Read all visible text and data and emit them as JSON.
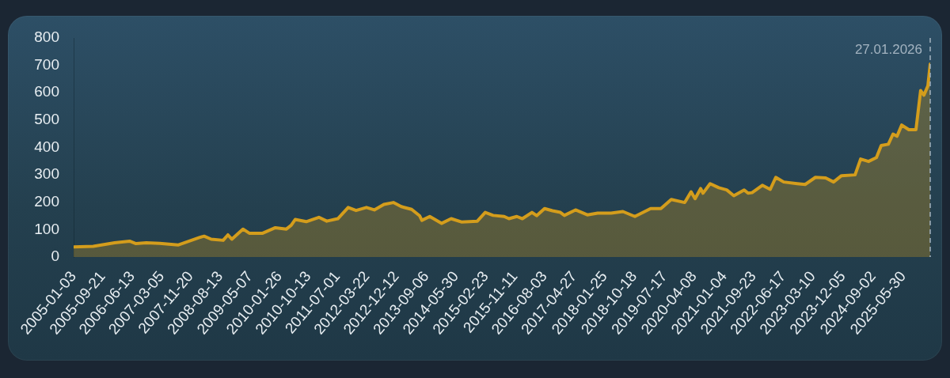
{
  "chart_data": {
    "type": "area",
    "x": [
      "2005-01-03",
      "2005-06-28",
      "2006-01-06",
      "2006-05-21",
      "2006-07-17",
      "2006-10-18",
      "2007-02-16",
      "2007-07-29",
      "2008-02-06",
      "2008-03-20",
      "2008-05-23",
      "2008-09-07",
      "2008-10-20",
      "2008-11-24",
      "2009-03-04",
      "2009-04-30",
      "2009-08-28",
      "2009-12-20",
      "2010-03-29",
      "2010-05-11",
      "2010-06-16",
      "2010-09-23",
      "2011-01-15",
      "2011-03-27",
      "2011-07-04",
      "2011-10-05",
      "2011-12-15",
      "2012-03-17",
      "2012-05-27",
      "2012-08-21",
      "2012-11-14",
      "2013-01-24",
      "2013-04-27",
      "2013-07-07",
      "2013-07-28",
      "2013-10-07",
      "2014-01-22",
      "2014-04-17",
      "2014-07-18",
      "2014-12-08",
      "2015-02-17",
      "2015-04-29",
      "2015-08-06",
      "2015-09-18",
      "2015-11-28",
      "2016-01-17",
      "2016-04-12",
      "2016-05-24",
      "2016-08-03",
      "2016-10-13",
      "2016-12-23",
      "2017-01-28",
      "2017-05-08",
      "2017-08-22",
      "2017-11-23",
      "2018-03-24",
      "2018-07-08",
      "2018-10-23",
      "2019-03-14",
      "2019-06-14",
      "2019-09-15",
      "2020-01-14",
      "2020-03-11",
      "2020-04-16",
      "2020-06-05",
      "2020-06-26",
      "2020-08-29",
      "2020-11-15",
      "2021-01-25",
      "2021-03-30",
      "2021-07-01",
      "2021-08-05",
      "2021-09-10",
      "2021-12-11",
      "2022-02-20",
      "2022-04-11",
      "2022-06-21",
      "2022-10-20",
      "2022-12-30",
      "2023-04-02",
      "2023-07-03",
      "2023-09-12",
      "2023-11-22",
      "2024-03-23",
      "2024-05-12",
      "2024-07-22",
      "2024-10-01",
      "2024-11-13",
      "2025-01-16",
      "2025-02-27",
      "2025-04-04",
      "2025-05-16",
      "2025-07-19",
      "2025-09-21",
      "2025-11-02",
      "2025-12-01",
      "2026-01-06",
      "2026-01-27"
    ],
    "series": [
      {
        "color": "#d49d1c",
        "values": [
          37,
          39,
          52,
          58,
          49,
          52,
          50,
          44,
          71,
          76,
          65,
          61,
          81,
          65,
          102,
          87,
          87,
          107,
          102,
          116,
          137,
          129,
          145,
          131,
          140,
          181,
          170,
          181,
          172,
          192,
          199,
          184,
          174,
          151,
          134,
          148,
          123,
          140,
          128,
          131,
          163,
          152,
          148,
          140,
          148,
          140,
          163,
          151,
          177,
          169,
          163,
          152,
          172,
          154,
          160,
          160,
          166,
          148,
          177,
          177,
          210,
          199,
          238,
          213,
          250,
          233,
          268,
          253,
          245,
          224,
          245,
          233,
          235,
          262,
          247,
          291,
          274,
          268,
          265,
          291,
          289,
          274,
          297,
          300,
          358,
          349,
          363,
          407,
          412,
          449,
          441,
          482,
          465,
          465,
          608,
          591,
          625,
          705
        ]
      }
    ],
    "xlim": [
      "2005-01-03",
      "2026-01-27"
    ],
    "xticks": [
      "2005-01-03",
      "2005-09-21",
      "2006-06-13",
      "2007-03-05",
      "2007-11-20",
      "2008-08-13",
      "2009-05-07",
      "2010-01-26",
      "2010-10-13",
      "2011-07-01",
      "2012-03-22",
      "2012-12-12",
      "2013-09-06",
      "2014-05-30",
      "2015-02-23",
      "2015-11-11",
      "2016-08-03",
      "2017-04-27",
      "2018-01-25",
      "2018-10-18",
      "2019-07-17",
      "2020-04-08",
      "2021-01-04",
      "2021-09-23",
      "2022-06-17",
      "2023-03-10",
      "2023-12-05",
      "2024-09-02",
      "2025-05-30"
    ],
    "ylim": [
      0,
      800
    ],
    "yticks": [
      0,
      100,
      200,
      300,
      400,
      500,
      600,
      700,
      800
    ],
    "ref_lines": [
      {
        "axis": "x",
        "value": "2026-01-27",
        "label": "27.01.2026",
        "color": "#a3b3c0",
        "line_style": "dashed"
      }
    ]
  }
}
